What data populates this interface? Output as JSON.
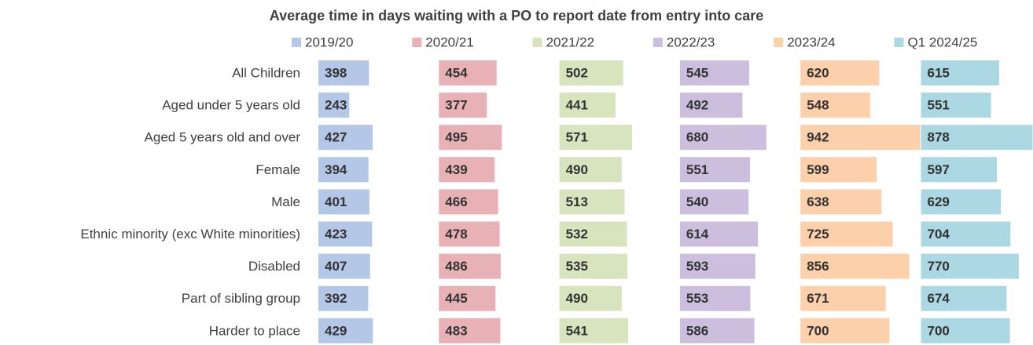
{
  "chart_data": {
    "type": "bar",
    "orientation": "horizontal",
    "title": "Average time in days waiting with a PO to report date from entry into care",
    "categories": [
      "All Children",
      "Aged under 5 years old",
      "Aged 5 years old and over",
      "Female",
      "Male",
      "Ethnic minority (exc White minorities)",
      "Disabled",
      "Part of sibling group",
      "Harder to place"
    ],
    "series": [
      {
        "name": "2019/20",
        "color": "#b4c7e7",
        "values": [
          398,
          243,
          427,
          394,
          401,
          423,
          407,
          392,
          429
        ]
      },
      {
        "name": "2020/21",
        "color": "#e8b1b6",
        "values": [
          454,
          377,
          495,
          439,
          466,
          478,
          486,
          445,
          483
        ]
      },
      {
        "name": "2021/22",
        "color": "#d7e4bd",
        "values": [
          502,
          441,
          571,
          490,
          513,
          532,
          535,
          490,
          541
        ]
      },
      {
        "name": "2022/23",
        "color": "#cbbfdd",
        "values": [
          545,
          492,
          680,
          551,
          540,
          614,
          593,
          553,
          586
        ]
      },
      {
        "name": "2023/24",
        "color": "#fbd0aa",
        "values": [
          620,
          548,
          942,
          599,
          638,
          725,
          856,
          671,
          700
        ]
      },
      {
        "name": "Q1 2024/25",
        "color": "#acd8e3",
        "values": [
          615,
          551,
          878,
          597,
          629,
          704,
          770,
          674,
          700
        ]
      }
    ],
    "legend": "top"
  }
}
